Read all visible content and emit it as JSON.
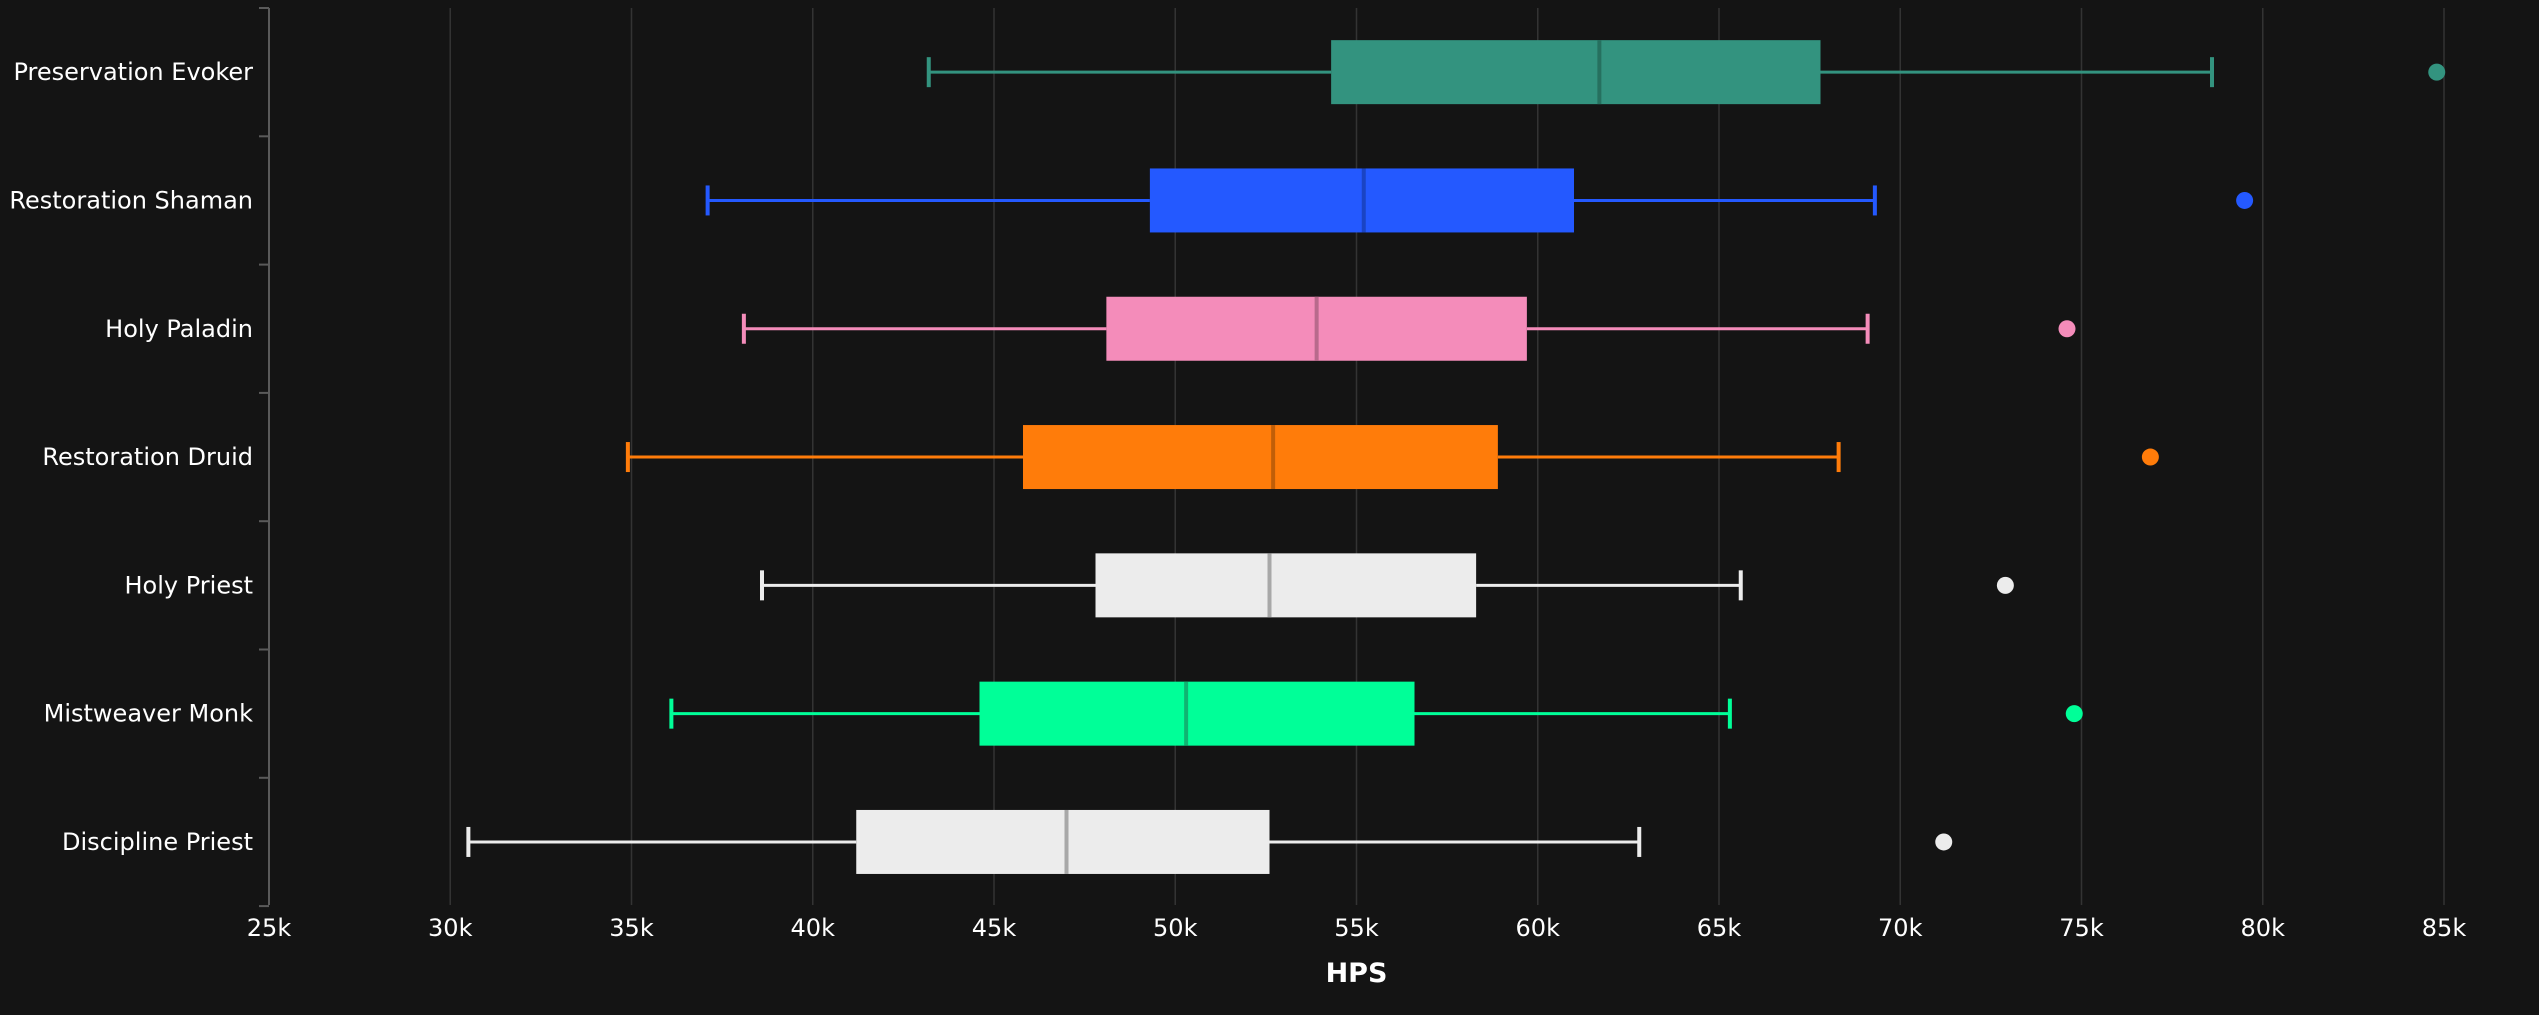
{
  "chart_data": {
    "type": "boxplot",
    "orientation": "horizontal",
    "xlabel": "HPS",
    "xlim": [
      25000,
      85000
    ],
    "xticks": [
      25000,
      30000,
      35000,
      40000,
      45000,
      50000,
      55000,
      60000,
      65000,
      70000,
      75000,
      80000,
      85000
    ],
    "xtick_labels": [
      "25k",
      "30k",
      "35k",
      "40k",
      "45k",
      "50k",
      "55k",
      "60k",
      "65k",
      "70k",
      "75k",
      "80k",
      "85k"
    ],
    "grid": "vertical",
    "categories": [
      "Preservation Evoker",
      "Restoration Shaman",
      "Holy Paladin",
      "Restoration Druid",
      "Holy Priest",
      "Mistweaver Monk",
      "Discipline Priest"
    ],
    "series": [
      {
        "category": "Preservation Evoker",
        "color": "#33937F",
        "median_color": "#26705f",
        "whisker_low": 43200,
        "q1": 54300,
        "median": 61700,
        "q3": 67800,
        "whisker_high": 78600,
        "outliers": [
          84800
        ]
      },
      {
        "category": "Restoration Shaman",
        "color": "#2459FF",
        "median_color": "#1a44c4",
        "whisker_low": 37100,
        "q1": 49300,
        "median": 55200,
        "q3": 61000,
        "whisker_high": 69300,
        "outliers": [
          79500
        ]
      },
      {
        "category": "Holy Paladin",
        "color": "#F48CBA",
        "median_color": "#b86a8c",
        "whisker_low": 38100,
        "q1": 48100,
        "median": 53900,
        "q3": 59700,
        "whisker_high": 69100,
        "outliers": [
          74600
        ]
      },
      {
        "category": "Restoration Druid",
        "color": "#FF7C0A",
        "median_color": "#c05e08",
        "whisker_low": 34900,
        "q1": 45800,
        "median": 52700,
        "q3": 58900,
        "whisker_high": 68300,
        "outliers": [
          76900
        ]
      },
      {
        "category": "Holy Priest",
        "color": "#ECECEC",
        "median_color": "#a8a8a8",
        "whisker_low": 38600,
        "q1": 47800,
        "median": 52600,
        "q3": 58300,
        "whisker_high": 65600,
        "outliers": [
          72900
        ]
      },
      {
        "category": "Mistweaver Monk",
        "color": "#00FF98",
        "median_color": "#10b472",
        "whisker_low": 36100,
        "q1": 44600,
        "median": 50300,
        "q3": 56600,
        "whisker_high": 65300,
        "outliers": [
          74800
        ]
      },
      {
        "category": "Discipline Priest",
        "color": "#ECECEC",
        "median_color": "#a8a8a8",
        "whisker_low": 30500,
        "q1": 41200,
        "median": 47000,
        "q3": 52600,
        "whisker_high": 62800,
        "outliers": [
          71200
        ]
      }
    ]
  }
}
